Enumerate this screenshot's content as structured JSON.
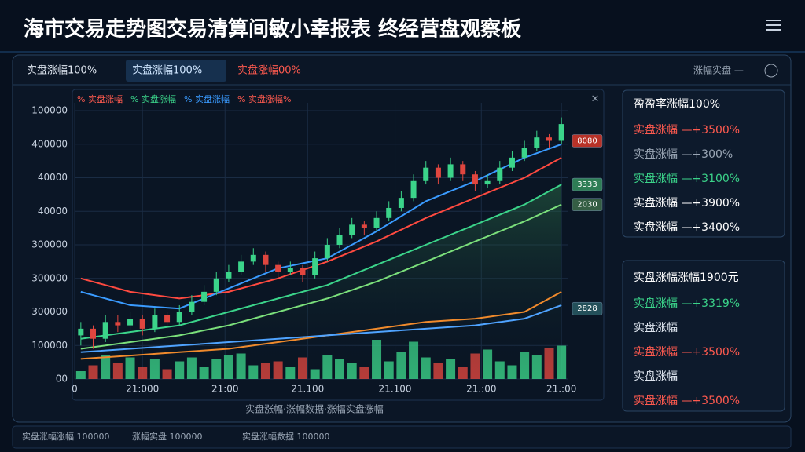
{
  "header": {
    "title": "海市交易走势图交易清算间敏小幸报表 终经营盘观察板"
  },
  "tabs": [
    {
      "label": "实盘涨幅100%",
      "color": "#dfe6f0"
    },
    {
      "label": "实盘涨幅100%",
      "color": "#cfe6ff"
    },
    {
      "label": "实盘涨幅00%",
      "color": "#ff5a4f"
    }
  ],
  "toolbar_text": "涨幅实盘 —",
  "chart_data": {
    "type": "candlestick",
    "legend": [
      {
        "label": "% 实盘涨幅",
        "color": "#ff5a4f"
      },
      {
        "label": "% 实盘涨幅",
        "color": "#3bd48a"
      },
      {
        "label": "% 实盘涨幅",
        "color": "#3a9bff"
      },
      {
        "label": "% 实盘涨幅%",
        "color": "#ff5a4f"
      }
    ],
    "ylim": [
      0,
      8
    ],
    "yticks": [
      {
        "value": 8,
        "label": "100000"
      },
      {
        "value": 7,
        "label": "400000"
      },
      {
        "value": 6,
        "label": "40000"
      },
      {
        "value": 5,
        "label": "40000"
      },
      {
        "value": 4,
        "label": "300000"
      },
      {
        "value": 3,
        "label": "300000"
      },
      {
        "value": 2,
        "label": "300000"
      },
      {
        "value": 1,
        "label": "100000"
      },
      {
        "value": 0,
        "label": "00"
      }
    ],
    "xlim": [
      -0.5,
      39.5
    ],
    "xticks": [
      {
        "value": -0.5,
        "label": "0"
      },
      {
        "value": 5,
        "label": "21:000"
      },
      {
        "value": 11.7,
        "label": "21:00"
      },
      {
        "value": 18.4,
        "label": "21.100"
      },
      {
        "value": 25.5,
        "label": "21.100"
      },
      {
        "value": 32.5,
        "label": "21.:00"
      },
      {
        "value": 39,
        "label": "21.:00"
      }
    ],
    "grid": true,
    "up_color": "#3bd48a",
    "down_color": "#e0463f",
    "candles": [
      [
        1.3,
        1.7,
        1.0,
        1.5
      ],
      [
        1.5,
        1.6,
        0.9,
        1.2
      ],
      [
        1.2,
        1.9,
        1.1,
        1.7
      ],
      [
        1.7,
        1.9,
        1.4,
        1.6
      ],
      [
        1.6,
        2.0,
        1.4,
        1.8
      ],
      [
        1.8,
        1.9,
        1.3,
        1.5
      ],
      [
        1.5,
        2.1,
        1.4,
        1.9
      ],
      [
        1.9,
        2.0,
        1.5,
        1.7
      ],
      [
        1.7,
        2.2,
        1.6,
        2.0
      ],
      [
        2.0,
        2.5,
        1.9,
        2.3
      ],
      [
        2.3,
        2.8,
        2.2,
        2.6
      ],
      [
        2.6,
        3.2,
        2.5,
        3.0
      ],
      [
        3.0,
        3.4,
        2.9,
        3.2
      ],
      [
        3.2,
        3.7,
        3.1,
        3.5
      ],
      [
        3.5,
        3.9,
        3.4,
        3.7
      ],
      [
        3.7,
        3.8,
        3.2,
        3.4
      ],
      [
        3.4,
        3.5,
        3.0,
        3.2
      ],
      [
        3.2,
        3.5,
        3.1,
        3.3
      ],
      [
        3.3,
        3.4,
        2.9,
        3.1
      ],
      [
        3.1,
        3.8,
        3.0,
        3.6
      ],
      [
        3.6,
        4.2,
        3.5,
        4.0
      ],
      [
        4.0,
        4.5,
        3.9,
        4.3
      ],
      [
        4.3,
        4.8,
        4.2,
        4.6
      ],
      [
        4.6,
        4.7,
        4.3,
        4.5
      ],
      [
        4.5,
        5.0,
        4.4,
        4.8
      ],
      [
        4.8,
        5.3,
        4.7,
        5.1
      ],
      [
        5.1,
        5.6,
        5.0,
        5.4
      ],
      [
        5.4,
        6.1,
        5.3,
        5.9
      ],
      [
        5.9,
        6.5,
        5.8,
        6.3
      ],
      [
        6.3,
        6.4,
        5.8,
        6.0
      ],
      [
        6.0,
        6.6,
        5.9,
        6.4
      ],
      [
        6.4,
        6.5,
        5.9,
        6.1
      ],
      [
        6.1,
        6.2,
        5.6,
        5.8
      ],
      [
        5.8,
        6.1,
        5.7,
        5.9
      ],
      [
        5.9,
        6.5,
        5.8,
        6.3
      ],
      [
        6.3,
        6.8,
        6.2,
        6.6
      ],
      [
        6.6,
        7.1,
        6.5,
        6.9
      ],
      [
        6.9,
        7.4,
        6.8,
        7.2
      ],
      [
        7.2,
        7.3,
        6.9,
        7.1
      ],
      [
        7.1,
        7.8,
        7.0,
        7.6
      ]
    ],
    "lines": {
      "x": [
        0,
        4,
        8,
        12,
        16,
        20,
        24,
        28,
        32,
        36,
        39
      ],
      "series": [
        {
          "color": "#ff4a40",
          "values": [
            3.0,
            2.6,
            2.4,
            2.6,
            3.0,
            3.5,
            4.1,
            4.8,
            5.4,
            6.0,
            6.6
          ]
        },
        {
          "color": "#3a9bff",
          "values": [
            2.6,
            2.2,
            2.1,
            2.7,
            3.3,
            3.6,
            4.4,
            5.3,
            5.9,
            6.6,
            7.0
          ]
        },
        {
          "color": "#3bd48a",
          "values": [
            1.2,
            1.4,
            1.6,
            2.0,
            2.4,
            2.8,
            3.4,
            4.0,
            4.6,
            5.2,
            5.8
          ]
        },
        {
          "color": "#7be07b",
          "values": [
            0.9,
            1.1,
            1.3,
            1.6,
            2.0,
            2.4,
            2.9,
            3.5,
            4.1,
            4.7,
            5.2
          ]
        },
        {
          "color": "#f08a2c",
          "values": [
            0.6,
            0.7,
            0.8,
            0.9,
            1.1,
            1.3,
            1.5,
            1.7,
            1.8,
            2.0,
            2.6
          ]
        },
        {
          "color": "#4fa3ff",
          "values": [
            0.8,
            0.9,
            1.0,
            1.1,
            1.2,
            1.3,
            1.4,
            1.5,
            1.6,
            1.8,
            2.2
          ]
        }
      ]
    },
    "volume": {
      "ylim": [
        0,
        100
      ],
      "values": [
        20,
        35,
        60,
        40,
        55,
        30,
        50,
        25,
        45,
        55,
        30,
        50,
        60,
        65,
        35,
        40,
        45,
        30,
        55,
        25,
        60,
        50,
        40,
        30,
        100,
        45,
        70,
        95,
        55,
        40,
        50,
        30,
        65,
        75,
        45,
        35,
        70,
        60,
        80,
        85
      ]
    },
    "price_tags": [
      {
        "label": "8080",
        "value": 7.1,
        "color": "#b83228"
      },
      {
        "label": "3333",
        "value": 5.8,
        "color": "#2e7d55"
      },
      {
        "label": "2030",
        "value": 5.2,
        "color": "#355e44"
      },
      {
        "label": "2828",
        "value": 2.1,
        "color": "#24505a"
      }
    ],
    "caption": "实盘涨幅·涨幅数据·涨幅实盘涨幅"
  },
  "panels": [
    {
      "title": "盈盈率涨幅100%",
      "rows": [
        {
          "text": "实盘涨幅 —+3500%",
          "color": "#ff5a4f"
        },
        {
          "text": "实盘涨幅 —+300%",
          "color": "#9aa6b5"
        },
        {
          "text": "实盘涨幅 —+3100%",
          "color": "#3bd48a"
        },
        {
          "text": "实盘涨幅 —+3900%",
          "color": "#ffffff"
        },
        {
          "text": "实盘涨幅 —+3400%",
          "color": "#ffffff"
        }
      ]
    },
    {
      "title": "实盘涨幅涨幅1900元",
      "rows": [
        {
          "text": "实盘涨幅 —+3319%",
          "color": "#3bd48a"
        },
        {
          "text": "实盘涨幅",
          "color": "#dfe6f0"
        },
        {
          "text": "实盘涨幅 —+3500%",
          "color": "#ff5a4f"
        },
        {
          "text": "实盘涨幅",
          "color": "#dfe6f0"
        },
        {
          "text": "实盘涨幅 —+3500%",
          "color": "#ff5a4f"
        }
      ]
    }
  ],
  "footer": [
    "实盘涨幅涨幅 100000",
    "涨幅实盘 100000",
    "实盘涨幅数据 100000"
  ]
}
